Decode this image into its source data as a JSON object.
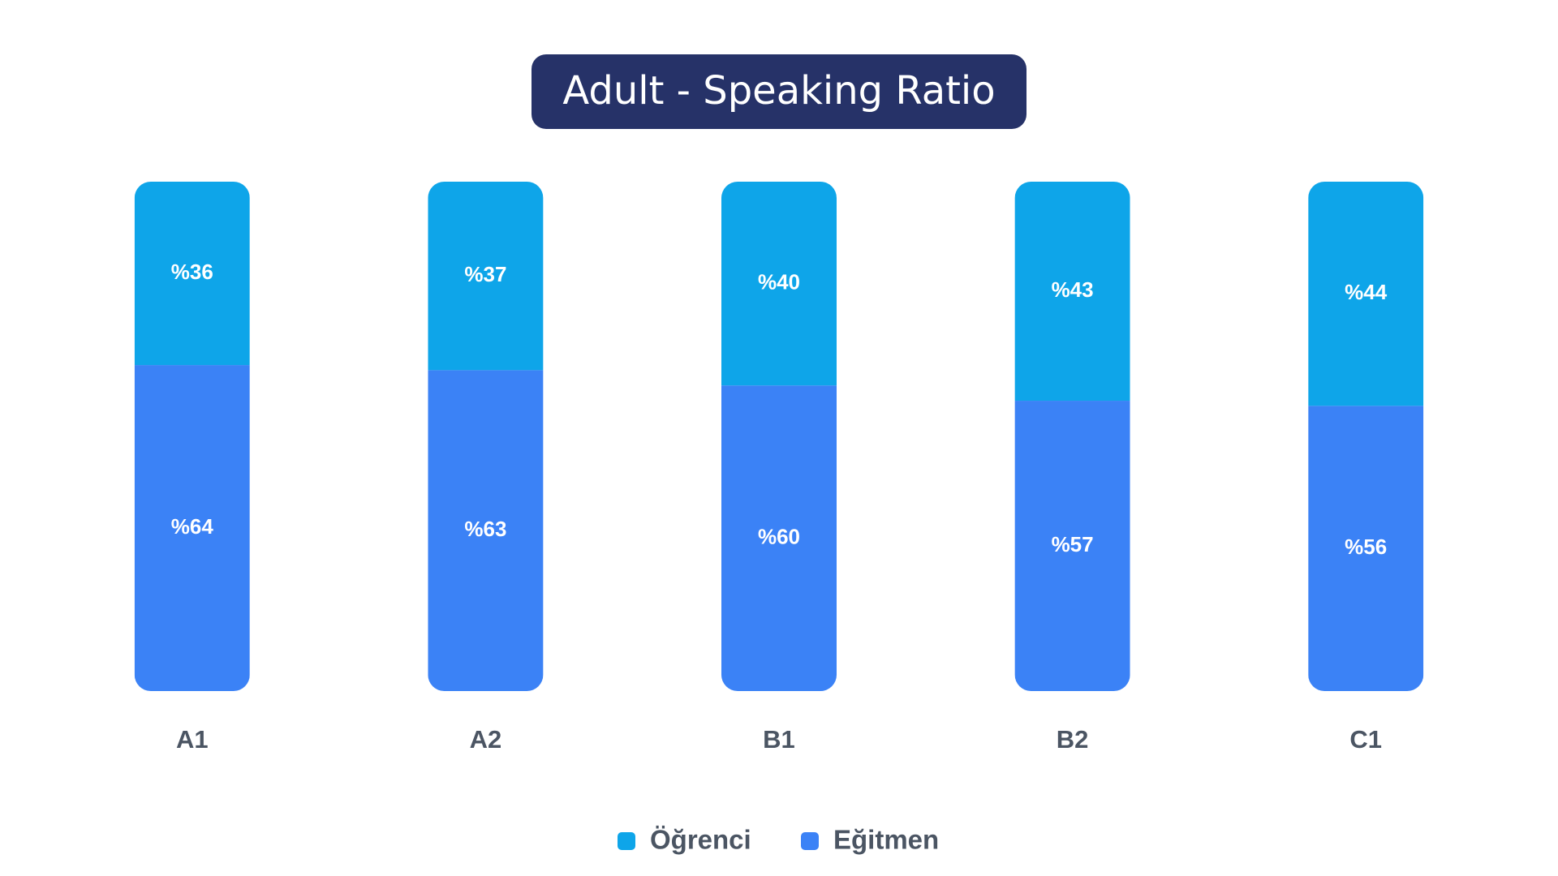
{
  "chart_data": {
    "type": "stacked_bar",
    "title": "Adult - Speaking Ratio",
    "categories": [
      "A1",
      "A2",
      "B1",
      "B2",
      "C1"
    ],
    "series": [
      {
        "name": "Öğrenci",
        "color": "#0ea5e9",
        "values": [
          36,
          37,
          40,
          43,
          44
        ],
        "value_labels": [
          "%36",
          "%37",
          "%40",
          "%43",
          "%44"
        ]
      },
      {
        "name": "Eğitmen",
        "color": "#3b82f6",
        "values": [
          64,
          63,
          60,
          57,
          56
        ],
        "value_labels": [
          "%64",
          "%63",
          "%60",
          "%57",
          "%56"
        ]
      }
    ],
    "legend": "bottom"
  }
}
